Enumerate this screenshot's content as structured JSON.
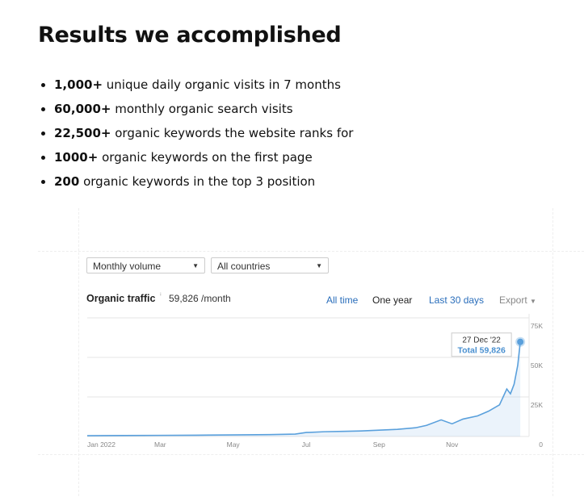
{
  "heading": "Results we accomplished",
  "bullets": [
    {
      "bold": "1,000+",
      "text": "unique daily organic visits in 7 months"
    },
    {
      "bold": "60,000+",
      "text": "monthly organic search visits"
    },
    {
      "bold": "22,500+",
      "text": "organic keywords the website ranks for"
    },
    {
      "bold": "1000+",
      "text": "organic keywords on the first page"
    },
    {
      "bold": "200",
      "text": "organic keywords in the top 3 position"
    }
  ],
  "widget": {
    "dropdowns": [
      "Monthly volume",
      "All countries"
    ],
    "tabs": [
      "All time",
      "One year",
      "Last 30 days",
      "Export"
    ]
  },
  "chart_data": {
    "type": "line",
    "title": "Organic traffic",
    "subtitle": "59,826 /month",
    "annotations": [
      "27 Dec '22",
      "Total 59,826"
    ],
    "x": [
      0,
      1,
      2,
      3,
      4,
      5,
      5.7,
      6,
      6.5,
      7,
      7.5,
      8,
      8.5,
      9,
      9.3,
      9.7,
      10,
      10.3,
      10.7,
      11,
      11.3,
      11.5,
      11.6,
      11.7,
      11.8,
      11.87
    ],
    "series": [
      {
        "name": "Organic traffic",
        "color": "#5aa0dc",
        "values": [
          500,
          600,
          700,
          800,
          1000,
          1200,
          1500,
          2500,
          3000,
          3200,
          3500,
          4000,
          4500,
          5500,
          7000,
          10500,
          8000,
          11000,
          13000,
          16000,
          20000,
          30000,
          27000,
          33000,
          45000,
          59826
        ]
      }
    ],
    "xlim": [
      0,
      12
    ],
    "xticks": [
      {
        "value": 0,
        "label": "Jan 2022"
      },
      {
        "value": 2,
        "label": "Mar"
      },
      {
        "value": 4,
        "label": "May"
      },
      {
        "value": 6,
        "label": "Jul"
      },
      {
        "value": 8,
        "label": "Sep"
      },
      {
        "value": 10,
        "label": "Nov"
      }
    ],
    "ylim": [
      0,
      75000
    ],
    "yticks": [
      0,
      {
        "value": 25000,
        "label": "25K"
      },
      {
        "value": 50000,
        "label": "50K"
      },
      {
        "value": 75000,
        "label": "75K"
      }
    ],
    "grid": true
  }
}
